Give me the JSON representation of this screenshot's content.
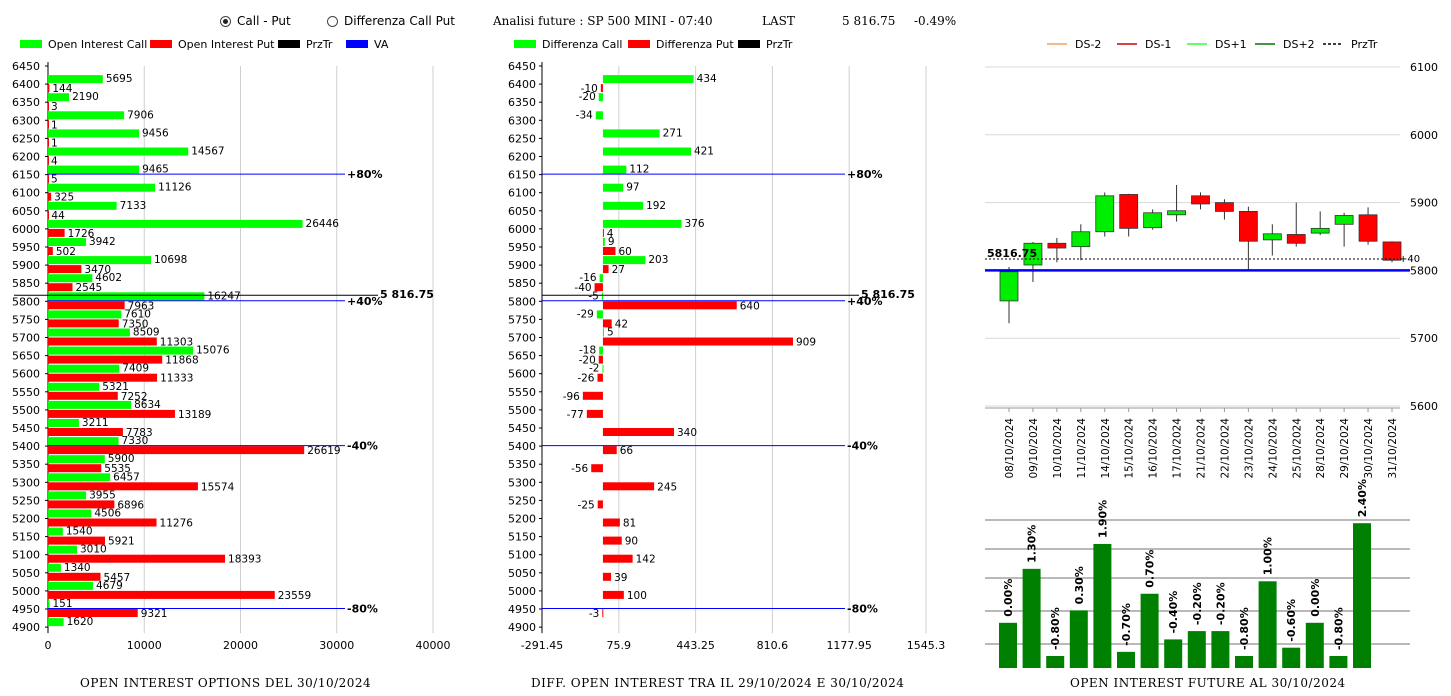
{
  "header": {
    "radio_call_put": "Call - Put",
    "radio_diff": "Differenza Call Put",
    "analysis_label": "Analisi future : SP 500 MINI - 07:40",
    "last_label": "LAST",
    "last_value": "5 816.75",
    "last_change": "-0.49%"
  },
  "captions": {
    "oi": "OPEN INTEREST OPTIONS DEL 30/10/2024",
    "diff": "DIFF. OPEN INTEREST TRA IL 29/10/2024 E 30/10/2024",
    "fut": "OPEN INTEREST FUTURE AL 30/10/2024"
  },
  "colors": {
    "call": "#00ff00",
    "put": "#ff0000",
    "przTr": "#000000",
    "va": "#0000ff",
    "up": "#00ee00",
    "down": "#ff0000",
    "fut_bar": "#008000"
  },
  "chart_data": [
    {
      "type": "bar",
      "legend": [
        "Open Interest Call",
        "Open Interest Put",
        "PrzTr",
        "VA"
      ],
      "strikes": [
        6450,
        6400,
        6350,
        6300,
        6250,
        6200,
        6150,
        6100,
        6050,
        6000,
        5950,
        5900,
        5850,
        5800,
        5750,
        5700,
        5650,
        5600,
        5550,
        5500,
        5450,
        5400,
        5350,
        5300,
        5250,
        5200,
        5150,
        5100,
        5050,
        5000,
        4950,
        4900
      ],
      "series": [
        {
          "name": "Open Interest Call",
          "values": [
            null,
            5695,
            2190,
            7906,
            9456,
            14567,
            9465,
            11126,
            7133,
            26446,
            3942,
            10698,
            4602,
            16247,
            7610,
            8509,
            15076,
            7409,
            5321,
            8634,
            3211,
            7330,
            5900,
            6457,
            3955,
            4506,
            1540,
            3010,
            1340,
            4679,
            151,
            1620
          ]
        },
        {
          "name": "Open Interest Put",
          "values": [
            null,
            144,
            3,
            1,
            1,
            4,
            5,
            325,
            44,
            1726,
            502,
            3470,
            2545,
            7963,
            7350,
            11303,
            11868,
            11333,
            7252,
            13189,
            7783,
            26619,
            5535,
            15574,
            6896,
            11276,
            5921,
            18393,
            5457,
            23559,
            9321,
            null
          ]
        }
      ],
      "xticks": [
        "0",
        "10000",
        "20000",
        "30000",
        "40000"
      ],
      "xlim": [
        0,
        40000
      ],
      "prz_label": "5 816.75",
      "va_lines": [
        {
          "strike": 6150,
          "label": "+80%"
        },
        {
          "strike": 5800,
          "label": "+40%"
        },
        {
          "strike": 5400,
          "label": "-40%"
        },
        {
          "strike": 4950,
          "label": "-80%"
        }
      ]
    },
    {
      "type": "bar",
      "legend": [
        "Differenza Call",
        "Differenza Put",
        "PrzTr"
      ],
      "strikes": [
        6450,
        6400,
        6350,
        6300,
        6250,
        6200,
        6150,
        6100,
        6050,
        6000,
        5950,
        5900,
        5850,
        5800,
        5750,
        5700,
        5650,
        5600,
        5550,
        5500,
        5450,
        5400,
        5350,
        5300,
        5250,
        5200,
        5150,
        5100,
        5050,
        5000,
        4950,
        4900
      ],
      "series": [
        {
          "name": "Differenza Call",
          "values": [
            null,
            434,
            -20,
            -34,
            271,
            421,
            112,
            97,
            192,
            376,
            9,
            203,
            -16,
            -5,
            -29,
            5,
            -18,
            -2,
            null,
            null,
            null,
            null,
            null,
            null,
            null,
            null,
            null,
            null,
            null,
            null,
            null,
            null
          ]
        },
        {
          "name": "Differenza Put",
          "values": [
            null,
            -10,
            null,
            null,
            null,
            null,
            null,
            null,
            null,
            4,
            60,
            27,
            -40,
            640,
            42,
            909,
            -20,
            -26,
            -96,
            -77,
            340,
            66,
            -56,
            245,
            -25,
            81,
            90,
            142,
            39,
            100,
            -3,
            null
          ]
        }
      ],
      "xticks": [
        "-291.45",
        "75.9",
        "443.25",
        "810.6",
        "1177.95",
        "1545.3"
      ],
      "xlim": [
        -291.45,
        1545.3
      ],
      "prz_label": "5 816.75",
      "va_lines": [
        {
          "strike": 6150,
          "label": "+80%"
        },
        {
          "strike": 5800,
          "label": "+40%"
        },
        {
          "strike": 5400,
          "label": "-40%"
        },
        {
          "strike": 4950,
          "label": "-80%"
        }
      ]
    },
    {
      "type": "candlestick",
      "legend": [
        "DS-2",
        "DS-1",
        "DS+1",
        "DS+2",
        "PrzTr"
      ],
      "yticks": [
        "6100",
        "6000",
        "5900",
        "5800",
        "5700",
        "5600"
      ],
      "ylim": [
        5600,
        6100
      ],
      "dates": [
        "08/10/2024",
        "09/10/2024",
        "10/10/2024",
        "11/10/2024",
        "14/10/2024",
        "15/10/2024",
        "16/10/2024",
        "17/10/2024",
        "21/10/2024",
        "22/10/2024",
        "23/10/2024",
        "24/10/2024",
        "25/10/2024",
        "28/10/2024",
        "29/10/2024",
        "30/10/2024",
        "31/10/2024"
      ],
      "candles": [
        {
          "o": 5755,
          "h": 5805,
          "l": 5722,
          "c": 5798
        },
        {
          "o": 5808,
          "h": 5842,
          "l": 5783,
          "c": 5840
        },
        {
          "o": 5840,
          "h": 5848,
          "l": 5812,
          "c": 5833
        },
        {
          "o": 5835,
          "h": 5868,
          "l": 5815,
          "c": 5857
        },
        {
          "o": 5857,
          "h": 5915,
          "l": 5850,
          "c": 5910
        },
        {
          "o": 5912,
          "h": 5913,
          "l": 5850,
          "c": 5862
        },
        {
          "o": 5863,
          "h": 5890,
          "l": 5860,
          "c": 5885
        },
        {
          "o": 5882,
          "h": 5926,
          "l": 5872,
          "c": 5888
        },
        {
          "o": 5910,
          "h": 5915,
          "l": 5890,
          "c": 5898
        },
        {
          "o": 5900,
          "h": 5905,
          "l": 5875,
          "c": 5887
        },
        {
          "o": 5887,
          "h": 5894,
          "l": 5800,
          "c": 5843
        },
        {
          "o": 5845,
          "h": 5868,
          "l": 5822,
          "c": 5854
        },
        {
          "o": 5853,
          "h": 5900,
          "l": 5835,
          "c": 5840
        },
        {
          "o": 5855,
          "h": 5887,
          "l": 5852,
          "c": 5862
        },
        {
          "o": 5868,
          "h": 5885,
          "l": 5835,
          "c": 5881
        },
        {
          "o": 5882,
          "h": 5893,
          "l": 5838,
          "c": 5843
        },
        {
          "o": 5842,
          "h": 5843,
          "l": 5812,
          "c": 5815
        }
      ],
      "prz_value": 5816.75,
      "prz_label": "5816.75",
      "prz_right_label": "+40",
      "va_value": 5800
    },
    {
      "type": "bar",
      "labels": [
        "0.00%",
        "1.30%",
        "-0.80%",
        "0.30%",
        "1.90%",
        "-0.70%",
        "0.70%",
        "-0.40%",
        "-0.20%",
        "-0.20%",
        "-0.80%",
        "1.00%",
        "-0.60%",
        "0.00%",
        "-0.80%",
        "2.40%"
      ],
      "values": [
        0.0,
        1.3,
        -0.8,
        0.3,
        1.9,
        -0.7,
        0.7,
        -0.4,
        -0.2,
        -0.2,
        -0.8,
        1.0,
        -0.6,
        0.0,
        -0.8,
        2.4
      ]
    }
  ]
}
